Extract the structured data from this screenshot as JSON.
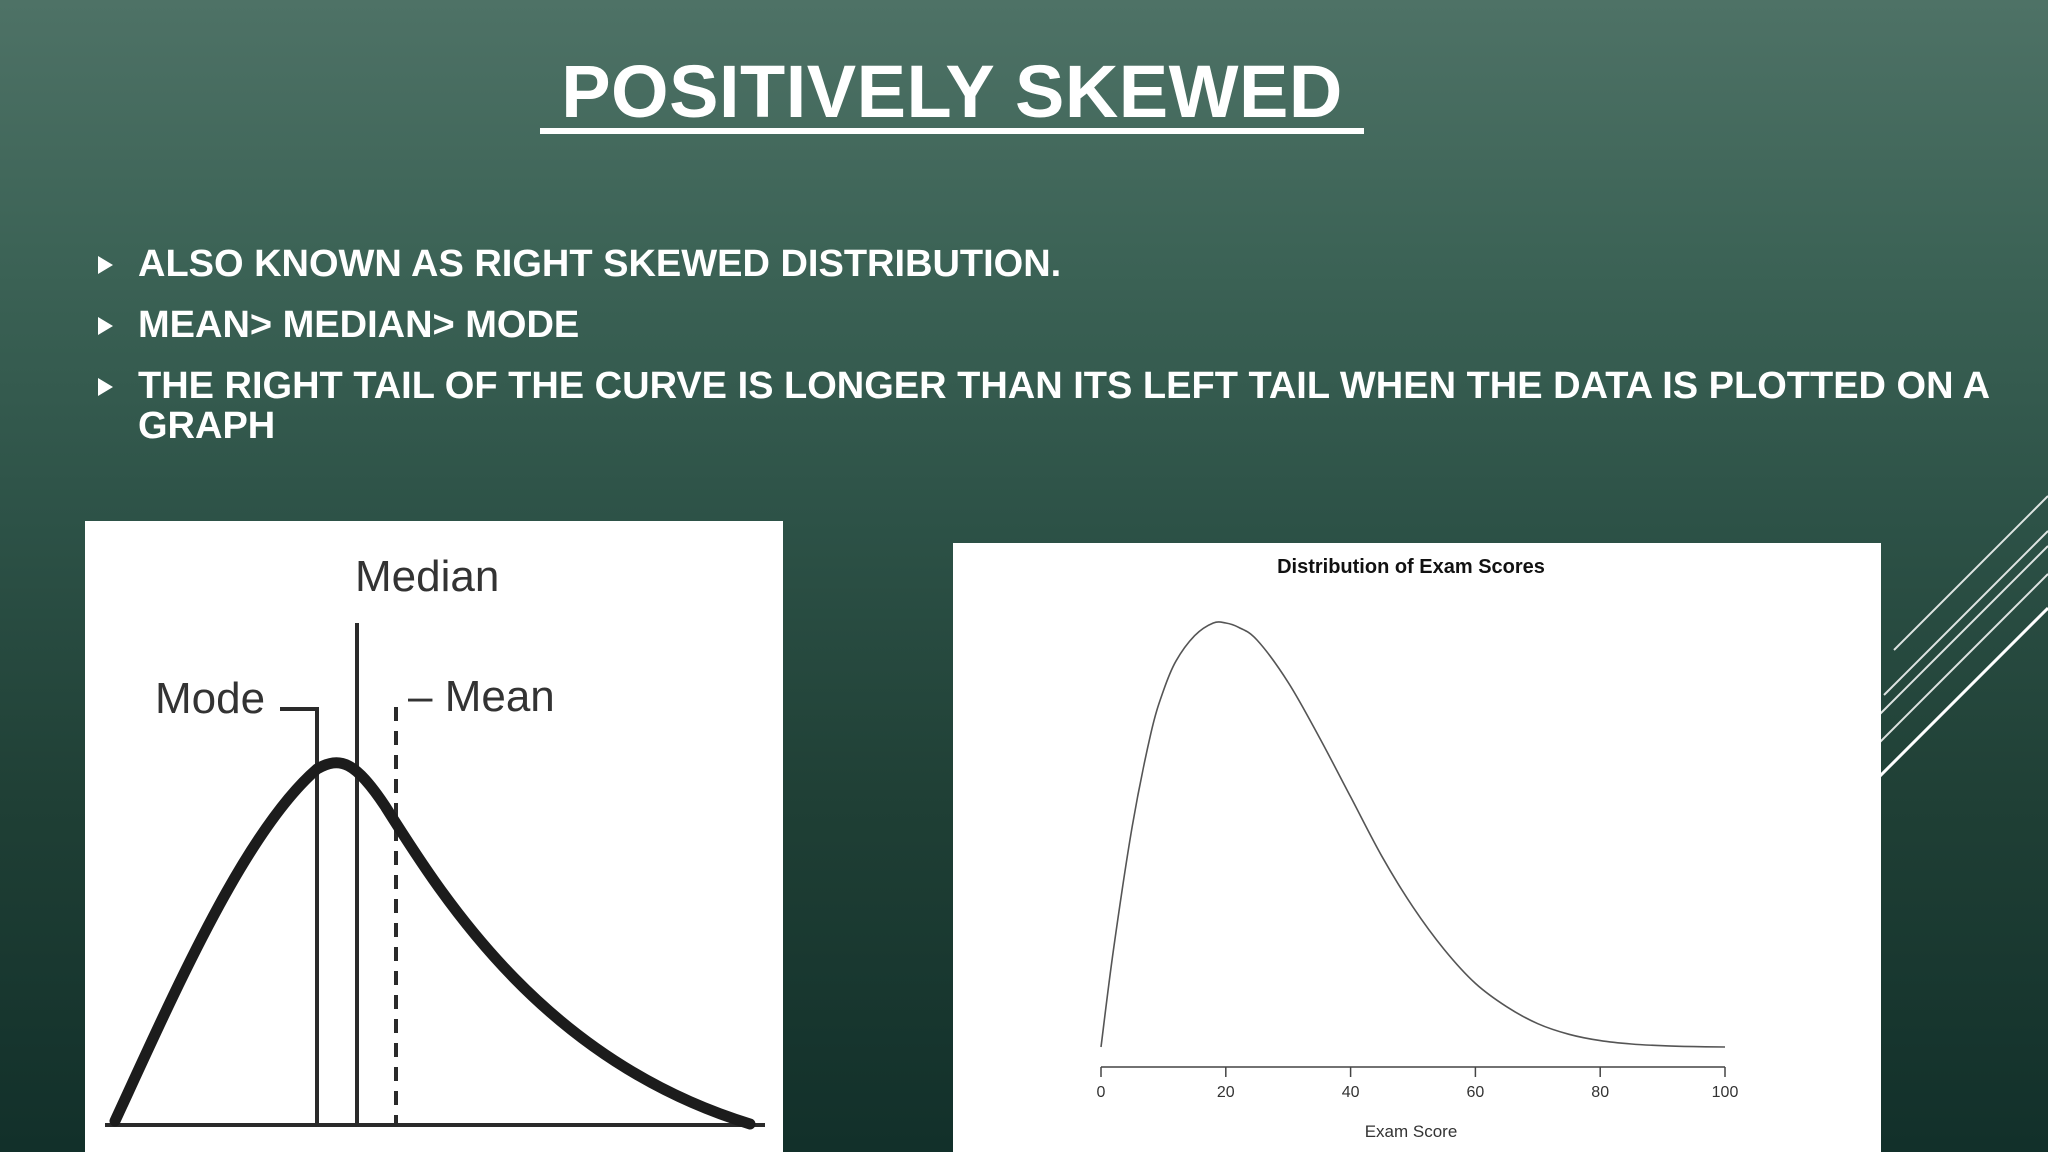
{
  "slide": {
    "title": "POSITIVELY SKEWED",
    "bullets": [
      "ALSO KNOWN AS RIGHT SKEWED DISTRIBUTION.",
      "MEAN> MEDIAN> MODE",
      "THE RIGHT TAIL OF THE CURVE IS LONGER THAN ITS LEFT TAIL WHEN THE DATA IS PLOTTED ON A GRAPH"
    ]
  },
  "left_diagram": {
    "labels": {
      "median": "Median",
      "mode": "Mode",
      "mean": "– Mean"
    }
  },
  "chart_data": {
    "type": "line",
    "title": "Distribution of Exam Scores",
    "xlabel": "Exam Score",
    "ylabel": "",
    "xlim": [
      0,
      100
    ],
    "xticks": [
      0,
      20,
      40,
      60,
      80,
      100
    ],
    "series": [
      {
        "x": [
          0,
          2,
          5,
          8,
          10,
          12,
          15,
          18,
          20,
          22,
          25,
          30,
          35,
          40,
          45,
          50,
          55,
          60,
          65,
          70,
          75,
          80,
          85,
          90,
          95,
          100
        ],
        "values": [
          0.0,
          0.23,
          0.52,
          0.74,
          0.84,
          0.91,
          0.97,
          1.0,
          1.0,
          0.99,
          0.96,
          0.86,
          0.73,
          0.59,
          0.45,
          0.33,
          0.23,
          0.15,
          0.095,
          0.055,
          0.03,
          0.015,
          0.007,
          0.003,
          0.001,
          0.0
        ]
      }
    ]
  },
  "colors": {
    "background_top": "#4e7266",
    "background_bottom": "#12302a",
    "text": "#ffffff"
  }
}
